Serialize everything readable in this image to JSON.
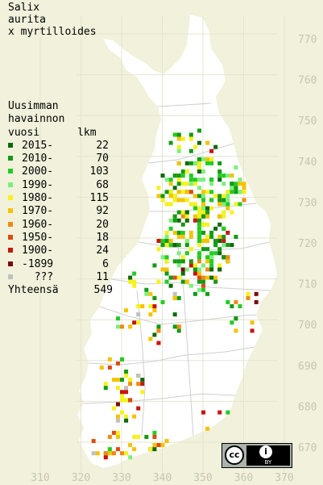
{
  "title": [
    "Salix",
    "aurita",
    "x myrtilloides"
  ],
  "legend": {
    "header": [
      "Uusimman",
      "havainnon",
      "vuosi      lkm"
    ],
    "rows": [
      {
        "label": "2015-",
        "count": "22",
        "color": "#0b6a0b"
      },
      {
        "label": "2010-",
        "count": "70",
        "color": "#139a13"
      },
      {
        "label": "2000-",
        "count": "103",
        "color": "#22cc22"
      },
      {
        "label": "1990-",
        "count": "68",
        "color": "#7cf07c"
      },
      {
        "label": "1980-",
        "count": "115",
        "color": "#f5f21a"
      },
      {
        "label": "1970-",
        "count": "92",
        "color": "#f6c200"
      },
      {
        "label": "1960-",
        "count": "20",
        "color": "#f08a14"
      },
      {
        "label": "1950-",
        "count": "18",
        "color": "#e04a10"
      },
      {
        "label": "1900-",
        "count": "24",
        "color": "#c8140f"
      },
      {
        "label": "-1899",
        "count": "6",
        "color": "#7a0a0a"
      },
      {
        "label": "???",
        "count": "11",
        "color": "#c0c0c0"
      }
    ],
    "total_label": "Yhteensä",
    "total_count": "549"
  },
  "axis": {
    "y_ticks": [
      "770",
      "760",
      "750",
      "740",
      "730",
      "720",
      "710",
      "700",
      "690",
      "680",
      "670"
    ],
    "x_ticks": [
      "310",
      "320",
      "330",
      "340",
      "350",
      "360",
      "370"
    ]
  },
  "license": {
    "cc_text": "cc",
    "by_icon": "person-icon",
    "by_text": "BY"
  },
  "colors": {
    "background": "#f1f1dc",
    "land": "#ffffff",
    "grid": "#dcdcc8",
    "border": "#c8c8c8"
  }
}
